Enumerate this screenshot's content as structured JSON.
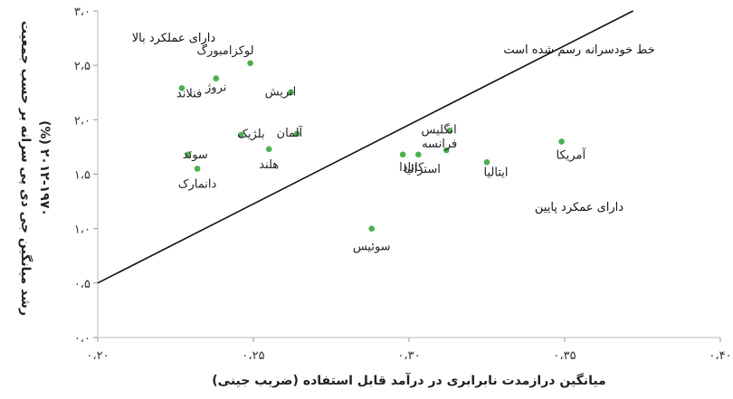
{
  "chart_data": {
    "type": "scatter",
    "xlabel": "میانگین درازمدت نابرابری در درآمد قابل استفاده (ضریب جینی)",
    "ylabel_line1": "رشد میانگین جی دی پی سرانه بر حسب جمعیت",
    "ylabel_line2": "۲۰۱۲-۱۹۷۰ (%)",
    "xlim": [
      0.2,
      0.4
    ],
    "ylim": [
      0.0,
      3.0
    ],
    "x_ticks": [
      0.2,
      0.25,
      0.3,
      0.35,
      0.4
    ],
    "x_tick_labels": [
      "۰،۲۰",
      "۰،۲۵",
      "۰،۳۰",
      "۰،۳۵",
      "۰،۴۰"
    ],
    "y_ticks": [
      0.0,
      0.5,
      1.0,
      1.5,
      2.0,
      2.5,
      3.0
    ],
    "y_tick_labels": [
      "۰،۰",
      "۰،۵",
      "۱،۰",
      "۱،۵",
      "۲،۰",
      "۲،۵",
      "۳،۰"
    ],
    "grid": false,
    "marker_color": "#4caf50",
    "points": [
      {
        "label": "لوکزامبورگ",
        "x": 0.249,
        "y": 2.52
      },
      {
        "label": "نروژ",
        "x": 0.238,
        "y": 2.38
      },
      {
        "label": "فنلاند",
        "x": 0.227,
        "y": 2.29
      },
      {
        "label": "اتریش",
        "x": 0.262,
        "y": 2.25
      },
      {
        "label": "بلژیک",
        "x": 0.246,
        "y": 1.86
      },
      {
        "label": "آلمان",
        "x": 0.264,
        "y": 1.87
      },
      {
        "label": "هلند",
        "x": 0.255,
        "y": 1.73
      },
      {
        "label": "سوئد",
        "x": 0.229,
        "y": 1.68
      },
      {
        "label": "دانمارک",
        "x": 0.232,
        "y": 1.55
      },
      {
        "label": "انگلیس",
        "x": 0.313,
        "y": 1.9
      },
      {
        "label": "فرانسه",
        "x": 0.312,
        "y": 1.72
      },
      {
        "label": "کانادا",
        "x": 0.298,
        "y": 1.68
      },
      {
        "label": "استرالیا",
        "x": 0.303,
        "y": 1.68
      },
      {
        "label": "ایتالیا",
        "x": 0.325,
        "y": 1.61
      },
      {
        "label": "آمریکا",
        "x": 0.349,
        "y": 1.8
      },
      {
        "label": "سوئیس",
        "x": 0.288,
        "y": 1.0
      }
    ],
    "reference_line": {
      "label": "خط خودسرانه رسم شده است",
      "x": [
        0.2,
        0.372
      ],
      "y": [
        0.5,
        3.0
      ]
    },
    "annotations": {
      "high": "دارای عملکرد بالا",
      "low": "دارای عمکرد پایین"
    }
  }
}
